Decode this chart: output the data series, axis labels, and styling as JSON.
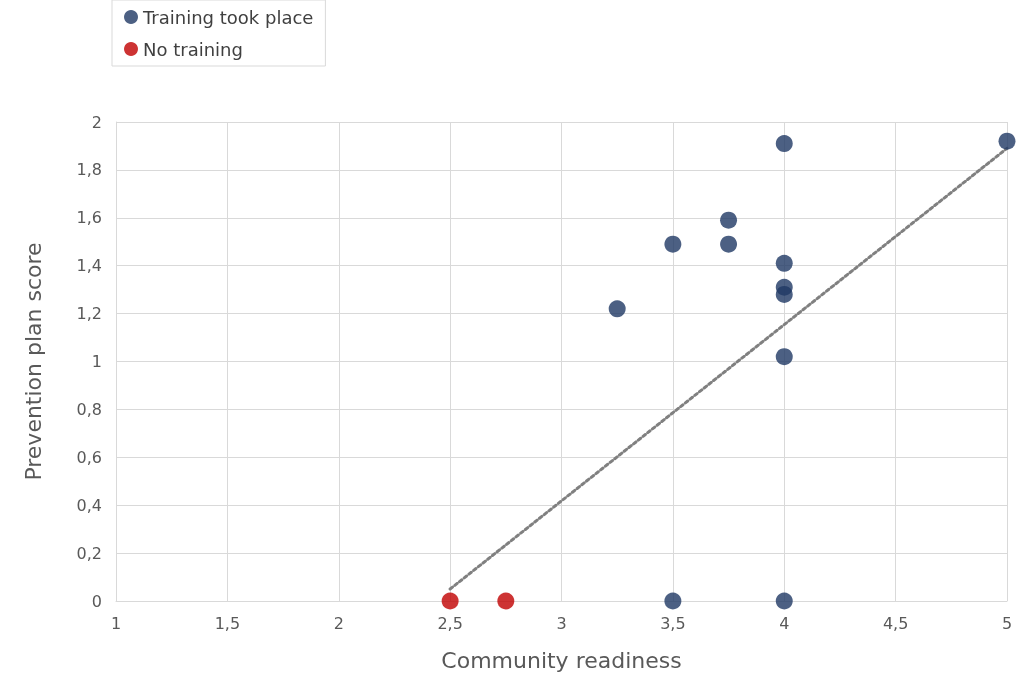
{
  "chart_data": {
    "type": "scatter",
    "xlabel": "Community readiness",
    "ylabel": "Prevention plan score",
    "xlim": [
      1,
      5
    ],
    "xticks": [
      1,
      {
        "value": 1.5,
        "label": "1,5"
      },
      2,
      {
        "value": 2.5,
        "label": "2,5"
      },
      3,
      {
        "value": 3.5,
        "label": "3,5"
      },
      4,
      {
        "value": 4.5,
        "label": "4,5"
      },
      5
    ],
    "ylim": [
      0,
      2
    ],
    "yticks": [
      0,
      {
        "value": 0.2,
        "label": "0,2"
      },
      {
        "value": 0.4,
        "label": "0,4"
      },
      {
        "value": 0.6,
        "label": "0,6"
      },
      {
        "value": 0.8,
        "label": "0,8"
      },
      1,
      {
        "value": 1.2,
        "label": "1,2"
      },
      {
        "value": 1.4,
        "label": "1,4"
      },
      {
        "value": 1.6,
        "label": "1,6"
      },
      {
        "value": 1.8,
        "label": "1,8"
      },
      2
    ],
    "grid": true,
    "legend": "top left",
    "marker": "circle",
    "series": [
      {
        "name": "Training took place",
        "color": "#1f3864",
        "x": [
          5,
          4,
          3.75,
          3.5,
          3.75,
          4,
          4,
          4,
          3.25,
          4,
          3.5,
          4
        ],
        "values": [
          1.92,
          1.91,
          1.59,
          1.49,
          1.49,
          1.41,
          1.31,
          1.28,
          1.22,
          1.02,
          0,
          0
        ]
      },
      {
        "name": "No training",
        "color": "#c00000",
        "x": [
          2.5,
          2.75
        ],
        "values": [
          0,
          0
        ]
      },
      {
        "type": "line",
        "color": "#808080",
        "line_style": "dotted",
        "marker": "none",
        "x": [
          2.5,
          5
        ],
        "values": [
          0.05,
          1.89
        ]
      }
    ]
  }
}
